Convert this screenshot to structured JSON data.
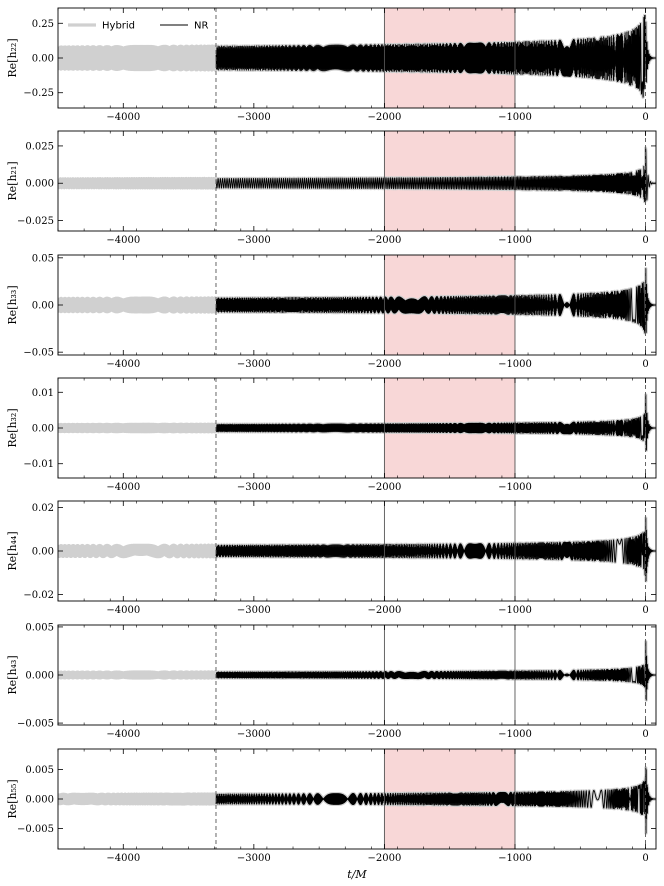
{
  "chart_data": {
    "type": "line",
    "xlabel": "t/M",
    "xlim": [
      -4500,
      80
    ],
    "xticks": [
      -4000,
      -3000,
      -2000,
      -1000,
      0
    ],
    "xtick_labels": [
      "−4000",
      "−3000",
      "−2000",
      "−1000",
      "0"
    ],
    "legend": {
      "placement": "top-left",
      "entries": [
        {
          "label": "Hybrid",
          "color": "#d0d0d0"
        },
        {
          "label": "NR",
          "color": "#000000"
        }
      ]
    },
    "vlines": [
      {
        "x": -3290,
        "style": "dashed",
        "color": "#555555"
      },
      {
        "x": -2000,
        "style": "solid",
        "color": "#555555"
      },
      {
        "x": -1000,
        "style": "solid",
        "color": "#555555"
      },
      {
        "x": 0,
        "style": "dashed",
        "color": "#555555"
      }
    ],
    "shaded_region": {
      "x": [
        -2000,
        -1000
      ],
      "color": "#f8d7d7"
    },
    "nr_start": -3290,
    "panels": [
      {
        "ylabel": "Re[h₂₂]",
        "amp_early": 0.08,
        "amp_peak": 0.32,
        "ylim": [
          -0.36,
          0.36
        ],
        "yticks": [
          -0.25,
          0,
          0.25
        ],
        "ytick_labels": [
          "−0.25",
          "0.00",
          "0.25"
        ],
        "m": 2,
        "shaded": true
      },
      {
        "ylabel": "Re[h₂₁]",
        "amp_early": 0.003,
        "amp_peak": 0.027,
        "ylim": [
          -0.032,
          0.035
        ],
        "yticks": [
          -0.025,
          0,
          0.025
        ],
        "ytick_labels": [
          "−0.025",
          "0.000",
          "0.025"
        ],
        "m": 1,
        "shaded": true
      },
      {
        "ylabel": "Re[h₃₃]",
        "amp_early": 0.007,
        "amp_peak": 0.05,
        "ylim": [
          -0.053,
          0.053
        ],
        "yticks": [
          -0.05,
          0,
          0.05
        ],
        "ytick_labels": [
          "−0.05",
          "0.00",
          "0.05"
        ],
        "m": 3,
        "shaded": true
      },
      {
        "ylabel": "Re[h₃₂]",
        "amp_early": 0.001,
        "amp_peak": 0.0115,
        "ylim": [
          -0.014,
          0.014
        ],
        "yticks": [
          -0.01,
          0,
          0.01
        ],
        "ytick_labels": [
          "−0.01",
          "0.00",
          "0.01"
        ],
        "m": 2,
        "shaded": true
      },
      {
        "ylabel": "Re[h₄₄]",
        "amp_early": 0.0025,
        "amp_peak": 0.021,
        "ylim": [
          -0.023,
          0.023
        ],
        "yticks": [
          -0.02,
          0,
          0.02
        ],
        "ytick_labels": [
          "−0.02",
          "0.00",
          "0.02"
        ],
        "m": 4,
        "shaded": false
      },
      {
        "ylabel": "Re[h₄₃]",
        "amp_early": 0.0003,
        "amp_peak": 0.0045,
        "ylim": [
          -0.0052,
          0.0052
        ],
        "yticks": [
          -0.005,
          0,
          0.005
        ],
        "ytick_labels": [
          "−0.005",
          "0.000",
          "0.005"
        ],
        "m": 3,
        "shaded": false
      },
      {
        "ylabel": "Re[h₅₅]",
        "amp_early": 0.0008,
        "amp_peak": 0.008,
        "ylim": [
          -0.0085,
          0.0085
        ],
        "yticks": [
          -0.005,
          0,
          0.005
        ],
        "ytick_labels": [
          "−0.005",
          "0.000",
          "0.005"
        ],
        "m": 5,
        "shaded": true
      }
    ]
  }
}
